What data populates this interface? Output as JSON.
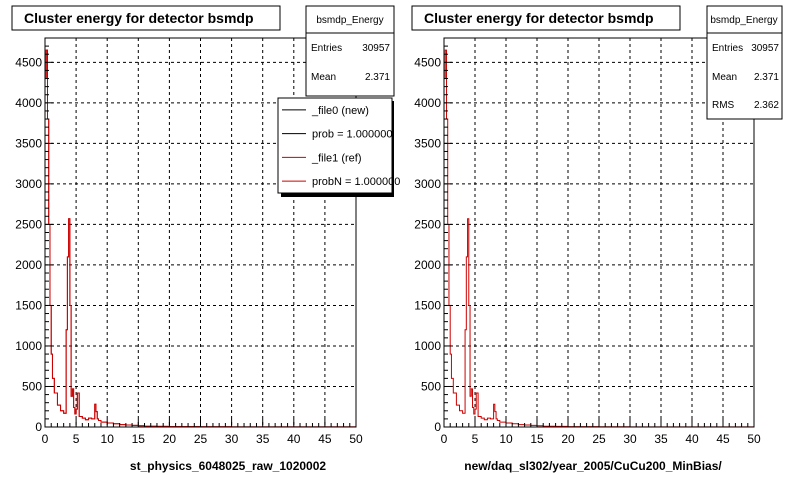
{
  "colors": {
    "reference": "#cc0000",
    "new": "#000000"
  },
  "panels": [
    {
      "title": "Cluster energy for detector bsmdp",
      "xlabel": "st_physics_6048025_raw_1020002",
      "stats": {
        "name": "bsmdp_Energy",
        "rows": [
          {
            "label": "Entries",
            "value": "30957"
          },
          {
            "label": "Mean",
            "value": "2.371"
          }
        ]
      },
      "legend": [
        {
          "text": "_file0 (new)",
          "color": "#000000"
        },
        {
          "text": "prob = 1.000000",
          "color": "#000000"
        },
        {
          "text": "_file1 (ref)",
          "color": "#cc0000"
        },
        {
          "text": "probN = 1.000000",
          "color": "#cc0000"
        }
      ]
    },
    {
      "title": "Cluster energy for detector bsmdp",
      "xlabel": "new/daq_sl302/year_2005/CuCu200_MinBias/",
      "stats": {
        "name": "bsmdp_Energy",
        "rows": [
          {
            "label": "Entries",
            "value": "30957"
          },
          {
            "label": "Mean",
            "value": "2.371"
          },
          {
            "label": "RMS",
            "value": "2.362"
          }
        ]
      },
      "legend": []
    }
  ],
  "chart_data": [
    {
      "type": "line",
      "title": "Cluster energy for detector bsmdp",
      "xlabel": "st_physics_6048025_raw_1020002",
      "xlim": [
        0,
        50
      ],
      "ylim": [
        0,
        4800
      ],
      "xticks": [
        0,
        5,
        10,
        15,
        20,
        25,
        30,
        35,
        40,
        45,
        50
      ],
      "yticks": [
        0,
        500,
        1000,
        1500,
        2000,
        2500,
        3000,
        3500,
        4000,
        4500
      ],
      "grid": true,
      "series": [
        {
          "name": "_file1 (ref)",
          "x": [
            0.0,
            0.2,
            0.4,
            0.6,
            0.8,
            1.0,
            1.2,
            1.5,
            2.0,
            2.5,
            3.0,
            3.4,
            3.6,
            3.8,
            4.0,
            4.2,
            4.4,
            4.6,
            4.8,
            5.0,
            5.2,
            5.5,
            6.0,
            6.5,
            7.0,
            7.5,
            8.0,
            8.2,
            8.4,
            8.6,
            9.0,
            10.0,
            11.0,
            12.0,
            13.0,
            14.0,
            15.0,
            16.0,
            18.0,
            20.0,
            25.0,
            30.0,
            40.0,
            50.0
          ],
          "y": [
            4300,
            4650,
            3800,
            2500,
            1500,
            900,
            600,
            420,
            270,
            200,
            170,
            1200,
            2100,
            2570,
            1500,
            380,
            470,
            240,
            160,
            220,
            420,
            130,
            110,
            90,
            110,
            100,
            280,
            190,
            100,
            80,
            60,
            50,
            40,
            30,
            25,
            20,
            15,
            10,
            8,
            5,
            3,
            2,
            1,
            0
          ]
        },
        {
          "name": "_file0 (new)",
          "x": [
            0.0,
            0.2,
            0.4,
            0.6,
            0.8,
            1.0,
            1.2,
            1.5,
            2.0,
            2.5,
            3.0,
            3.4,
            3.6,
            3.8,
            4.0,
            4.2,
            4.4,
            4.6,
            4.8,
            5.0,
            5.2,
            5.5,
            6.0,
            6.5,
            7.0,
            7.5,
            8.0,
            8.2,
            8.4,
            8.6,
            9.0,
            10.0,
            11.0,
            12.0,
            13.0,
            14.0,
            15.0,
            16.0,
            18.0,
            20.0,
            25.0,
            30.0,
            40.0,
            50.0
          ],
          "y": [
            4300,
            4650,
            3800,
            2500,
            1500,
            900,
            600,
            420,
            270,
            200,
            170,
            1200,
            2100,
            2570,
            1500,
            380,
            470,
            240,
            160,
            220,
            420,
            130,
            110,
            90,
            110,
            100,
            280,
            190,
            100,
            80,
            60,
            50,
            40,
            30,
            25,
            20,
            15,
            10,
            8,
            5,
            3,
            2,
            1,
            0
          ]
        }
      ]
    },
    {
      "type": "line",
      "title": "Cluster energy for detector bsmdp",
      "xlabel": "new/daq_sl302/year_2005/CuCu200_MinBias/",
      "xlim": [
        0,
        50
      ],
      "ylim": [
        0,
        4800
      ],
      "xticks": [
        0,
        5,
        10,
        15,
        20,
        25,
        30,
        35,
        40,
        45,
        50
      ],
      "yticks": [
        0,
        500,
        1000,
        1500,
        2000,
        2500,
        3000,
        3500,
        4000,
        4500
      ],
      "grid": true,
      "series": [
        {
          "name": "bsmdp_Energy",
          "x": [
            0.0,
            0.2,
            0.4,
            0.6,
            0.8,
            1.0,
            1.2,
            1.5,
            2.0,
            2.5,
            3.0,
            3.4,
            3.6,
            3.8,
            4.0,
            4.2,
            4.4,
            4.6,
            4.8,
            5.0,
            5.2,
            5.5,
            6.0,
            6.5,
            7.0,
            7.5,
            8.0,
            8.2,
            8.4,
            8.6,
            9.0,
            10.0,
            11.0,
            12.0,
            13.0,
            14.0,
            15.0,
            16.0,
            18.0,
            20.0,
            25.0,
            30.0,
            40.0,
            50.0
          ],
          "y": [
            4300,
            4650,
            3800,
            2500,
            1500,
            900,
            600,
            420,
            270,
            200,
            170,
            1200,
            2100,
            2570,
            1500,
            380,
            470,
            240,
            160,
            220,
            420,
            130,
            110,
            90,
            110,
            100,
            280,
            190,
            100,
            80,
            60,
            50,
            40,
            30,
            25,
            20,
            15,
            10,
            8,
            5,
            3,
            2,
            1,
            0
          ]
        }
      ]
    }
  ]
}
